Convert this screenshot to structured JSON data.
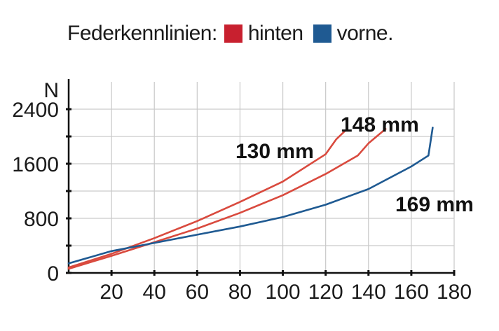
{
  "chart_data": {
    "type": "line",
    "legend_title": "Federkennlinien:",
    "legend": [
      {
        "name": "hinten",
        "color": "#c8202f"
      },
      {
        "name": "vorne.",
        "color": "#1f5a92"
      }
    ],
    "ylabel": "N",
    "xlabel": "",
    "xlim": [
      0,
      180
    ],
    "ylim": [
      0,
      2800
    ],
    "x_ticks": [
      20,
      40,
      60,
      80,
      100,
      120,
      140,
      160,
      180
    ],
    "y_ticks": [
      0,
      800,
      1600,
      2400
    ],
    "y_tick_labels": [
      "0",
      "800",
      "1600",
      "2400"
    ],
    "series": [
      {
        "name": "130 mm",
        "group": "hinten",
        "color": "#d94a3e",
        "points": [
          [
            0,
            80
          ],
          [
            20,
            280
          ],
          [
            40,
            510
          ],
          [
            60,
            760
          ],
          [
            80,
            1040
          ],
          [
            100,
            1340
          ],
          [
            120,
            1740
          ],
          [
            125,
            1960
          ],
          [
            130,
            2110
          ]
        ]
      },
      {
        "name": "148 mm",
        "group": "hinten",
        "color": "#d94a3e",
        "points": [
          [
            0,
            60
          ],
          [
            20,
            250
          ],
          [
            40,
            450
          ],
          [
            60,
            650
          ],
          [
            80,
            880
          ],
          [
            100,
            1140
          ],
          [
            120,
            1450
          ],
          [
            135,
            1720
          ],
          [
            140,
            1900
          ],
          [
            148,
            2110
          ]
        ]
      },
      {
        "name": "169 mm",
        "group": "vorne.",
        "color": "#1f5a92",
        "points": [
          [
            0,
            140
          ],
          [
            20,
            320
          ],
          [
            40,
            440
          ],
          [
            60,
            560
          ],
          [
            80,
            680
          ],
          [
            100,
            820
          ],
          [
            120,
            1000
          ],
          [
            140,
            1230
          ],
          [
            160,
            1560
          ],
          [
            168,
            1720
          ],
          [
            170,
            2130
          ]
        ]
      }
    ],
    "annotations": [
      {
        "text": "130 mm"
      },
      {
        "text": "148 mm"
      },
      {
        "text": "169 mm"
      }
    ]
  }
}
